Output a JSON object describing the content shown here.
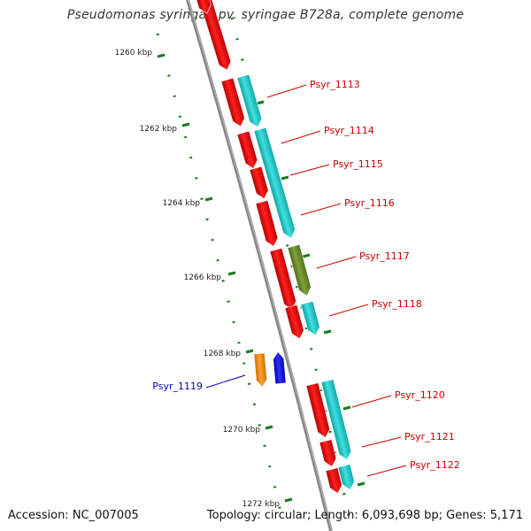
{
  "title": "Pseudomonas syringae pv. syringae B728a, complete genome",
  "accession_label": "Accession: NC_007005",
  "topology_label": "Topology: circular; Length: 6,093,698 bp; Genes: 5,171",
  "kbp_ticks": [
    {
      "label": "1260 kbp"
    },
    {
      "label": "1262 kbp"
    },
    {
      "label": "1264 kbp"
    },
    {
      "label": "1266 kbp"
    },
    {
      "label": "1268 kbp"
    },
    {
      "label": "1270 kbp"
    },
    {
      "label": "1272 kbp"
    }
  ],
  "gene_labels": [
    {
      "name": "Psyr_1113",
      "color": "#cc0000"
    },
    {
      "name": "Psyr_1114",
      "color": "#cc0000"
    },
    {
      "name": "Psyr_1115",
      "color": "#cc0000"
    },
    {
      "name": "Psyr_1116",
      "color": "#cc0000"
    },
    {
      "name": "Psyr_1117",
      "color": "#cc0000"
    },
    {
      "name": "Psyr_1118",
      "color": "#cc0000"
    },
    {
      "name": "Psyr_1119",
      "color": "#0000bb"
    },
    {
      "name": "Psyr_1120",
      "color": "#cc0000"
    },
    {
      "name": "Psyr_1121",
      "color": "#cc0000"
    },
    {
      "name": "Psyr_1122",
      "color": "#cc0000"
    }
  ],
  "colors": {
    "red_gene": "#ee1111",
    "cyan_gene": "#22cccc",
    "olive_gene": "#6b8e23",
    "orange_gene": "#ff8c00",
    "blue_gene": "#0000ee",
    "backbone": "#888888",
    "tick": "#1a7a1a"
  }
}
